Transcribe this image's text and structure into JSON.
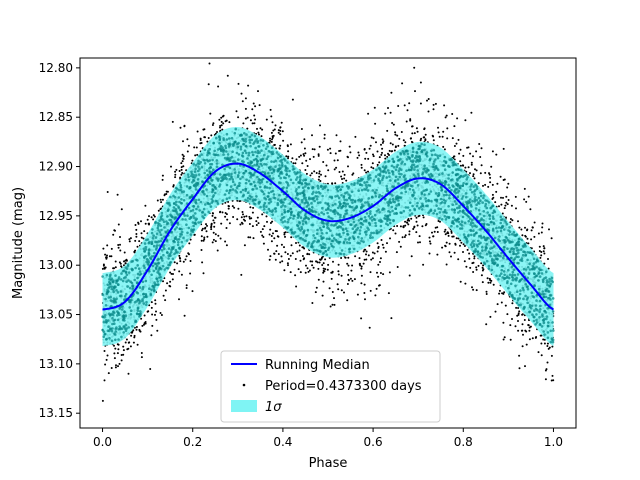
{
  "chart_data": {
    "type": "scatter",
    "title": "",
    "xlabel": "Phase",
    "ylabel": "Magnitude (mag)",
    "xlim": [
      -0.05,
      1.05
    ],
    "ylim": [
      13.165,
      12.79
    ],
    "y_inverted": true,
    "grid": false,
    "legend_position": "lower center",
    "x_ticks": [
      {
        "value": 0.0,
        "label": "0.0"
      },
      {
        "value": 0.2,
        "label": "0.2"
      },
      {
        "value": 0.4,
        "label": "0.4"
      },
      {
        "value": 0.6,
        "label": "0.6"
      },
      {
        "value": 0.8,
        "label": "0.8"
      },
      {
        "value": 1.0,
        "label": "1.0"
      }
    ],
    "y_ticks": [
      {
        "value": 12.8,
        "label": "12.80"
      },
      {
        "value": 12.85,
        "label": "12.85"
      },
      {
        "value": 12.9,
        "label": "12.90"
      },
      {
        "value": 12.95,
        "label": "12.95"
      },
      {
        "value": 13.0,
        "label": "13.00"
      },
      {
        "value": 13.05,
        "label": "13.05"
      },
      {
        "value": 13.1,
        "label": "13.10"
      },
      {
        "value": 13.15,
        "label": "13.15"
      }
    ],
    "series": [
      {
        "name": "Running Median",
        "kind": "line",
        "color": "#0000ff",
        "x": [
          0.0,
          0.05,
          0.1,
          0.15,
          0.2,
          0.25,
          0.3,
          0.35,
          0.4,
          0.45,
          0.5,
          0.55,
          0.6,
          0.65,
          0.7,
          0.75,
          0.8,
          0.85,
          0.9,
          0.95,
          1.0
        ],
        "y": [
          13.045,
          13.037,
          13.005,
          12.965,
          12.933,
          12.905,
          12.897,
          12.907,
          12.925,
          12.945,
          12.955,
          12.952,
          12.94,
          12.922,
          12.912,
          12.918,
          12.94,
          12.965,
          12.993,
          13.02,
          13.045
        ]
      },
      {
        "name": "Period=0.4373300 days",
        "kind": "scatter",
        "color": "#000000"
      },
      {
        "name": "1σ",
        "kind": "band",
        "color": "#7ff4f4",
        "half_width": 0.037
      }
    ]
  }
}
